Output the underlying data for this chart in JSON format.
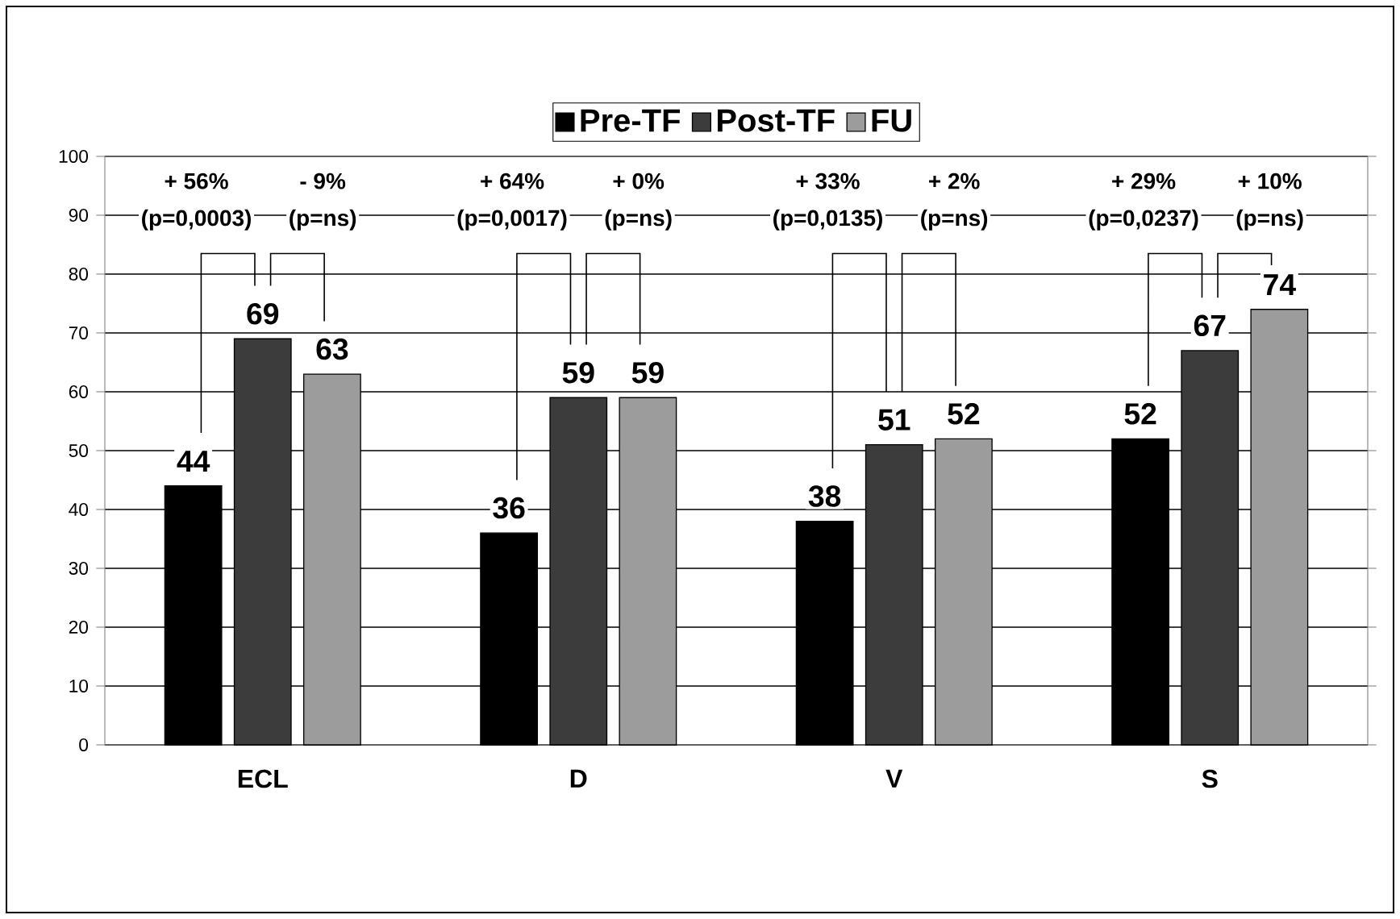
{
  "chart_data": {
    "type": "bar",
    "categories": [
      "ECL",
      "D",
      "V",
      "S"
    ],
    "series": [
      {
        "name": "Pre-TF",
        "color": "#000000",
        "values": [
          44,
          36,
          38,
          52
        ]
      },
      {
        "name": "Post-TF",
        "color": "#3c3c3c",
        "values": [
          69,
          59,
          51,
          67
        ]
      },
      {
        "name": "FU",
        "color": "#9c9c9c",
        "values": [
          63,
          59,
          52,
          74
        ]
      }
    ],
    "ylim": [
      0,
      100
    ],
    "yticks": [
      0,
      10,
      20,
      30,
      40,
      50,
      60,
      70,
      80,
      90,
      100
    ],
    "grid": "y",
    "legend": "top",
    "data_labels": true,
    "annotations": [
      "+ 56%",
      "(p=0,0003)",
      "- 9%",
      "(p=ns)",
      "+ 64%",
      "(p=0,0017)",
      "+ 0%",
      "(p=ns)",
      "+ 33%",
      "(p=0,0135)",
      "+ 2%",
      "(p=ns)",
      "+ 29%",
      "(p=0,0237)",
      "+ 10%",
      "(p=ns)"
    ]
  }
}
